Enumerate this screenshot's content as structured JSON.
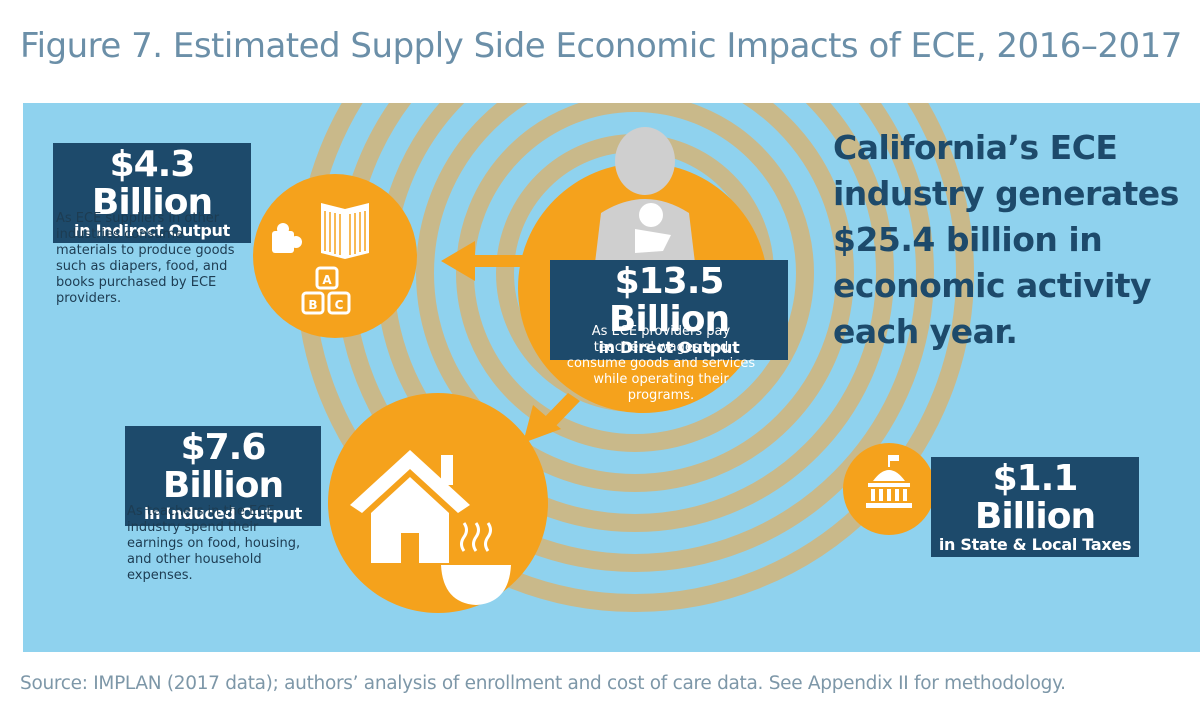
{
  "figure": {
    "title": "Figure 7. Estimated Supply Side Economic Impacts of ECE, 2016–2017",
    "source": "Source: IMPLAN (2017 data); authors’ analysis of enrollment and cost of care data. See Appendix II for methodology."
  },
  "headline": "California’s ECE industry generates $25.4 billion in economic activity each year.",
  "impacts": {
    "indirect": {
      "amount": "$4.3 Billion",
      "label": "in Indirect Output",
      "description": "As ECE suppliers in other industries consume materials to produce goods such as diapers, food, and books purchased by ECE providers."
    },
    "direct": {
      "amount": "$13.5 Billion",
      "label": "in Direct Output",
      "description": "As ECE providers pay teachers' wages and consume goods and services while operating their programs."
    },
    "induced": {
      "amount": "$7.6 Billion",
      "label": "in Induced Output",
      "description": "As teachers in the ECE industry spend their earnings on food, housing, and other household expenses."
    },
    "taxes": {
      "amount": "$1.1 Billion",
      "label": "in State & Local Taxes"
    }
  },
  "icons": {
    "blocks_letters": [
      "A",
      "B",
      "C"
    ]
  },
  "colors": {
    "background": "#8fd2ee",
    "rings": "#c9b98a",
    "orange": "#f5a21c",
    "navy": "#1d4a6b",
    "title": "#6b8fa8"
  }
}
